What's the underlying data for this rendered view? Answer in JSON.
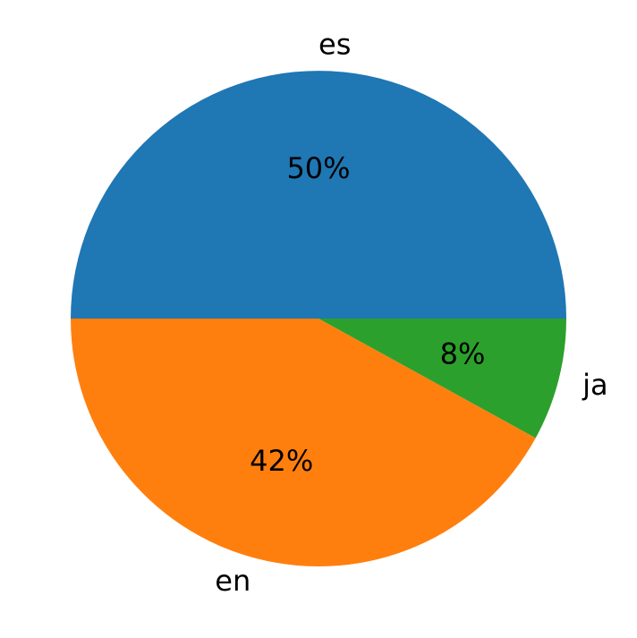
{
  "chart_data": {
    "type": "pie",
    "categories": [
      "es",
      "en",
      "ja"
    ],
    "values": [
      50,
      42,
      8
    ],
    "value_labels": [
      "50%",
      "42%",
      "8%"
    ],
    "colors": [
      "#1f77b4",
      "#ff7f0e",
      "#2ca02c"
    ]
  }
}
